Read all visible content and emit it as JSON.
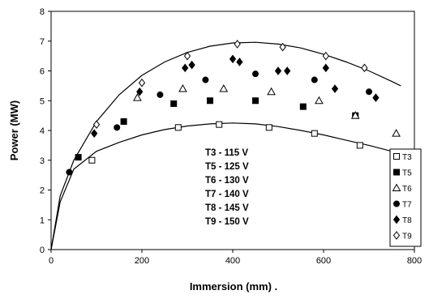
{
  "chart_data": {
    "type": "scatter",
    "title": "",
    "xlabel": "Immersion (mm) .",
    "ylabel": "Power (MW)",
    "xlim": [
      0,
      800
    ],
    "ylim": [
      0,
      8
    ],
    "xticks": [
      "0",
      "200",
      "400",
      "600",
      "800"
    ],
    "yticks": [
      "0",
      "1",
      "2",
      "3",
      "4",
      "5",
      "6",
      "7",
      "8"
    ],
    "grid": false,
    "legend_position": "bottom-right",
    "annotations": [
      "T3 - 115 V",
      "T5 - 125 V",
      "T6 - 130 V",
      "T7 - 140 V",
      "T8 - 145 V",
      "T9 - 150 V"
    ],
    "series": [
      {
        "name": "T3",
        "marker": "open-square",
        "color": "#000000",
        "x": [
          90,
          280,
          370,
          480,
          580,
          680
        ],
        "y": [
          3.0,
          4.1,
          4.2,
          4.1,
          3.9,
          3.5
        ]
      },
      {
        "name": "T5",
        "marker": "filled-square",
        "color": "#000000",
        "x": [
          60,
          160,
          270,
          350,
          450,
          555,
          670
        ],
        "y": [
          3.1,
          4.3,
          4.9,
          5.0,
          5.0,
          4.8,
          4.5
        ]
      },
      {
        "name": "T6",
        "marker": "open-triangle",
        "color": "#000000",
        "x": [
          190,
          290,
          380,
          485,
          590,
          670,
          760
        ],
        "y": [
          5.1,
          5.4,
          5.4,
          5.3,
          5.0,
          4.5,
          3.9
        ]
      },
      {
        "name": "T7",
        "marker": "filled-circle",
        "color": "#000000",
        "x": [
          40,
          145,
          240,
          340,
          450,
          580,
          700
        ],
        "y": [
          2.6,
          4.1,
          5.2,
          5.7,
          5.9,
          5.7,
          5.3
        ]
      },
      {
        "name": "T8",
        "marker": "filled-diamond",
        "color": "#000000",
        "x": [
          95,
          195,
          295,
          310,
          400,
          415,
          500,
          520,
          605,
          625,
          715
        ],
        "y": [
          3.9,
          5.3,
          6.1,
          6.2,
          6.4,
          6.3,
          6.0,
          6.0,
          6.1,
          5.4,
          5.1
        ]
      },
      {
        "name": "T9",
        "marker": "open-diamond",
        "color": "#000000",
        "x": [
          100,
          200,
          300,
          410,
          510,
          605,
          690
        ],
        "y": [
          4.2,
          5.6,
          6.5,
          6.9,
          6.8,
          6.5,
          6.1
        ]
      }
    ],
    "envelopes": [
      {
        "x": [
          0,
          20,
          50,
          100,
          150,
          200,
          250,
          300,
          350,
          400,
          450,
          500,
          550,
          600,
          650,
          700,
          750,
          770
        ],
        "y": [
          0.0,
          1.6,
          2.7,
          3.3,
          3.6,
          3.85,
          4.03,
          4.15,
          4.22,
          4.25,
          4.22,
          4.13,
          4.0,
          3.85,
          3.67,
          3.5,
          3.3,
          3.2
        ]
      },
      {
        "x": [
          0,
          20,
          50,
          100,
          150,
          200,
          250,
          300,
          350,
          400,
          450,
          500,
          550,
          600,
          650,
          700,
          750,
          770
        ],
        "y": [
          0.0,
          1.8,
          3.0,
          4.3,
          5.2,
          5.85,
          6.3,
          6.62,
          6.83,
          6.94,
          6.96,
          6.9,
          6.77,
          6.56,
          6.3,
          6.0,
          5.65,
          5.5
        ]
      }
    ]
  }
}
